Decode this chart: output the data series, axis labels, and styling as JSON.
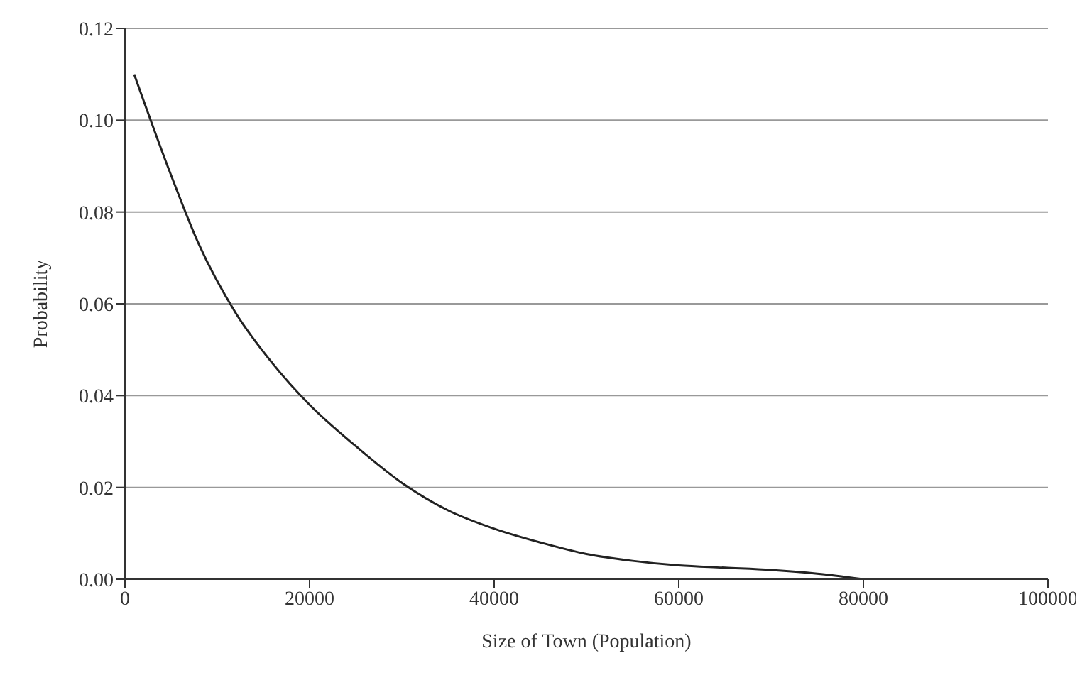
{
  "chart_data": {
    "type": "line",
    "xlabel": "Size of Town (Population)",
    "ylabel": "Probability",
    "x": [
      1000,
      5000,
      8000,
      12000,
      16000,
      20000,
      25000,
      30000,
      35000,
      40000,
      45000,
      50000,
      55000,
      60000,
      65000,
      70000,
      75000,
      80000
    ],
    "series": [
      {
        "color": "#222222",
        "values": [
          0.11,
          0.088,
          0.073,
          0.058,
          0.047,
          0.038,
          0.029,
          0.021,
          0.015,
          0.011,
          0.008,
          0.0055,
          0.004,
          0.003,
          0.0025,
          0.002,
          0.0012,
          0.0
        ]
      }
    ],
    "xlim": [
      0,
      100000
    ],
    "xticks": [
      0,
      20000,
      40000,
      60000,
      80000,
      100000
    ],
    "ylim": [
      0,
      0.12
    ],
    "yticks": [
      {
        "value": 0,
        "label": "0.00"
      },
      {
        "value": 0.02,
        "label": "0.02"
      },
      {
        "value": 0.04,
        "label": "0.04"
      },
      {
        "value": 0.06,
        "label": "0.06"
      },
      {
        "value": 0.08,
        "label": "0.08"
      },
      {
        "value": 0.1,
        "label": "0.10"
      },
      {
        "value": 0.12,
        "label": "0.12"
      }
    ],
    "grid": "y",
    "marker": "none",
    "line_style": "solid"
  }
}
